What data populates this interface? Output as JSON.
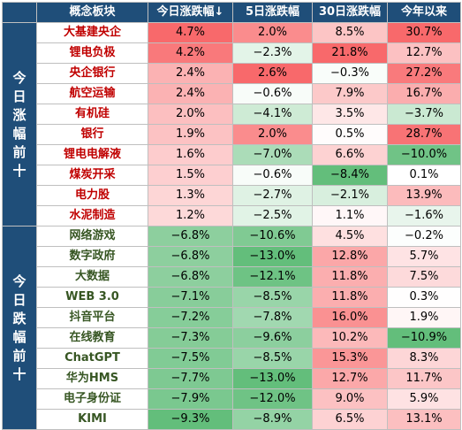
{
  "chart_data": {
    "type": "table",
    "columns": [
      "",
      "概念板块",
      "今日涨跌幅↓",
      "5日涨跌幅",
      "30日涨跌幅",
      "今年以来"
    ],
    "groups": [
      {
        "label": "今日涨幅前十",
        "tone": "top",
        "rows": [
          {
            "name": "大基建央企",
            "d1": 4.7,
            "d5": 2.0,
            "d30": 8.5,
            "ytd": 30.7
          },
          {
            "name": "锂电负极",
            "d1": 4.2,
            "d5": -2.3,
            "d30": 21.8,
            "ytd": 12.7
          },
          {
            "name": "央企银行",
            "d1": 2.4,
            "d5": 2.6,
            "d30": -0.3,
            "ytd": 27.2
          },
          {
            "name": "航空运输",
            "d1": 2.4,
            "d5": -0.6,
            "d30": 7.9,
            "ytd": 16.7
          },
          {
            "name": "有机硅",
            "d1": 2.0,
            "d5": -4.1,
            "d30": 3.5,
            "ytd": -3.7
          },
          {
            "name": "银行",
            "d1": 1.9,
            "d5": 2.0,
            "d30": 0.5,
            "ytd": 28.7
          },
          {
            "name": "锂电电解液",
            "d1": 1.6,
            "d5": -7.0,
            "d30": 6.6,
            "ytd": -10.0
          },
          {
            "name": "煤炭开采",
            "d1": 1.5,
            "d5": -0.6,
            "d30": -8.4,
            "ytd": 0.1
          },
          {
            "name": "电力股",
            "d1": 1.3,
            "d5": -2.7,
            "d30": -2.1,
            "ytd": 13.9
          },
          {
            "name": "水泥制造",
            "d1": 1.2,
            "d5": -2.5,
            "d30": 1.1,
            "ytd": -1.6
          }
        ]
      },
      {
        "label": "今日跌幅前十",
        "tone": "bot",
        "rows": [
          {
            "name": "网络游戏",
            "d1": -6.8,
            "d5": -10.6,
            "d30": 4.5,
            "ytd": -0.2
          },
          {
            "name": "数字政府",
            "d1": -6.8,
            "d5": -13.0,
            "d30": 12.8,
            "ytd": 5.7
          },
          {
            "name": "大数据",
            "d1": -6.8,
            "d5": -12.1,
            "d30": 11.8,
            "ytd": 7.5
          },
          {
            "name": "WEB 3.0",
            "d1": -7.1,
            "d5": -8.5,
            "d30": 11.8,
            "ytd": 0.3
          },
          {
            "name": "抖音平台",
            "d1": -7.2,
            "d5": -7.8,
            "d30": 16.0,
            "ytd": 1.9
          },
          {
            "name": "在线教育",
            "d1": -7.3,
            "d5": -9.6,
            "d30": 10.2,
            "ytd": -10.9
          },
          {
            "name": "ChatGPT",
            "d1": -7.5,
            "d5": -8.5,
            "d30": 15.3,
            "ytd": 8.3
          },
          {
            "name": "华为HMS",
            "d1": -7.7,
            "d5": -13.0,
            "d30": 12.7,
            "ytd": 11.7
          },
          {
            "name": "电子身份证",
            "d1": -7.9,
            "d5": -12.0,
            "d30": 9.0,
            "ytd": 5.9
          },
          {
            "name": "KIMI",
            "d1": -9.3,
            "d5": -8.9,
            "d30": 6.5,
            "ytd": 13.1
          }
        ]
      }
    ]
  },
  "colors": {
    "header_bg": "#1f4e79",
    "positive": "#f8696b",
    "negative": "#63be7b",
    "neutral": "#ffffff"
  }
}
